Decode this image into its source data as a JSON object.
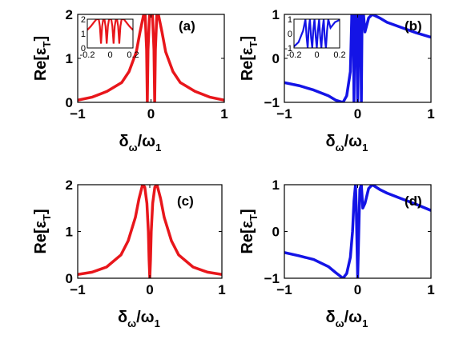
{
  "chart_data": [
    {
      "type": "line",
      "panel_label": "(a)",
      "xlim": [
        -1,
        1
      ],
      "ylim": [
        0,
        2
      ],
      "xticks": [
        "−1",
        "0",
        "1"
      ],
      "yticks": [
        "0",
        "1",
        "2"
      ],
      "ylabel": {
        "main": "Re[ε",
        "sub": "T",
        "close": "]"
      },
      "xlabel": {
        "main": "δ",
        "sub1": "ω",
        "mid": "/ω",
        "sub2": "1"
      },
      "series_color": "#e8161b",
      "x": [
        -1,
        -0.8,
        -0.6,
        -0.4,
        -0.3,
        -0.2,
        -0.15,
        -0.1,
        -0.08,
        -0.06,
        -0.05,
        -0.04,
        -0.02,
        0,
        0.02,
        0.04,
        0.05,
        0.06,
        0.08,
        0.1,
        0.15,
        0.2,
        0.3,
        0.4,
        0.6,
        0.8,
        1
      ],
      "y": [
        0.05,
        0.12,
        0.25,
        0.45,
        0.7,
        1.15,
        1.6,
        2.0,
        2.0,
        1.2,
        0.0,
        1.2,
        2.0,
        2.0,
        2.0,
        1.2,
        0.0,
        1.2,
        2.0,
        2.0,
        1.6,
        1.15,
        0.7,
        0.45,
        0.25,
        0.12,
        0.05
      ],
      "inset": {
        "xlim": [
          -0.2,
          0.2
        ],
        "ylim": [
          0,
          2
        ],
        "xticks": [
          "-0.2",
          "0",
          "0.2"
        ],
        "yticks": [
          "0",
          "1",
          "2"
        ],
        "x": [
          -0.2,
          -0.17,
          -0.14,
          -0.12,
          -0.1,
          -0.09,
          -0.08,
          -0.07,
          -0.06,
          -0.05,
          -0.04,
          -0.03,
          -0.02,
          -0.01,
          0,
          0.01,
          0.02,
          0.03,
          0.04,
          0.05,
          0.06,
          0.07,
          0.08,
          0.09,
          0.1,
          0.12,
          0.14,
          0.17,
          0.2
        ],
        "y": [
          1.25,
          1.5,
          1.8,
          2.0,
          2.0,
          1.5,
          0.3,
          1.5,
          2.0,
          2.0,
          1.5,
          0.3,
          1.5,
          2.0,
          2.0,
          2.0,
          1.5,
          0.3,
          1.5,
          2.0,
          2.0,
          1.5,
          0.3,
          1.5,
          2.0,
          2.0,
          1.8,
          1.5,
          1.25
        ]
      }
    },
    {
      "type": "line",
      "panel_label": "(b)",
      "xlim": [
        -1,
        1
      ],
      "ylim": [
        -1,
        1
      ],
      "xticks": [
        "−1",
        "0",
        "1"
      ],
      "yticks": [
        "−1",
        "0",
        "1"
      ],
      "ylabel": {
        "main": "Re[ε",
        "sub": "T",
        "close": "]"
      },
      "xlabel": {
        "main": "δ",
        "sub1": "ω",
        "mid": "/ω",
        "sub2": "1"
      },
      "series_color": "#1414e6",
      "x": [
        -1,
        -0.8,
        -0.6,
        -0.4,
        -0.3,
        -0.2,
        -0.15,
        -0.1,
        -0.08,
        -0.06,
        -0.05,
        -0.04,
        -0.02,
        0,
        0.02,
        0.04,
        0.05,
        0.06,
        0.08,
        0.1,
        0.15,
        0.2,
        0.3,
        0.4,
        0.6,
        0.8,
        1
      ],
      "y": [
        -0.55,
        -0.62,
        -0.72,
        -0.85,
        -0.95,
        -1.0,
        -0.85,
        -0.3,
        1.0,
        1.0,
        -1.0,
        1.0,
        1.0,
        -1.0,
        1.0,
        1.0,
        -1.0,
        1.0,
        1.0,
        0.6,
        0.92,
        1.0,
        0.92,
        0.82,
        0.7,
        0.58,
        0.48
      ],
      "inset": {
        "xlim": [
          -0.2,
          0.2
        ],
        "ylim": [
          -1,
          1
        ],
        "xticks": [
          "-0.2",
          "0",
          "0.2"
        ],
        "yticks": [
          "-1",
          "0",
          "1"
        ],
        "x": [
          -0.2,
          -0.16,
          -0.12,
          -0.1,
          -0.09,
          -0.08,
          -0.07,
          -0.06,
          -0.05,
          -0.04,
          -0.03,
          -0.02,
          -0.01,
          0,
          0.01,
          0.02,
          0.03,
          0.04,
          0.05,
          0.06,
          0.07,
          0.08,
          0.09,
          0.1,
          0.12,
          0.16,
          0.2
        ],
        "y": [
          -0.9,
          -0.6,
          0.2,
          1.0,
          -0.2,
          -1.0,
          0.4,
          1.0,
          -0.3,
          -1.0,
          0.3,
          1.0,
          -0.2,
          -1.0,
          0.2,
          1.0,
          -0.3,
          -1.0,
          0.3,
          1.0,
          -0.4,
          -1.0,
          0.2,
          1.0,
          0.4,
          0.8,
          0.95
        ]
      }
    },
    {
      "type": "line",
      "panel_label": "(c)",
      "xlim": [
        -1,
        1
      ],
      "ylim": [
        0,
        2
      ],
      "xticks": [
        "−1",
        "0",
        "1"
      ],
      "yticks": [
        "0",
        "1",
        "2"
      ],
      "ylabel": {
        "main": "Re[ε",
        "sub": "T",
        "close": "]"
      },
      "xlabel": {
        "main": "δ",
        "sub1": "ω",
        "mid": "/ω",
        "sub2": "1"
      },
      "series_color": "#e8161b",
      "x": [
        -1,
        -0.8,
        -0.6,
        -0.4,
        -0.3,
        -0.2,
        -0.15,
        -0.1,
        -0.07,
        -0.04,
        -0.02,
        -0.01,
        0,
        0.01,
        0.02,
        0.04,
        0.07,
        0.1,
        0.15,
        0.2,
        0.3,
        0.4,
        0.6,
        0.8,
        1
      ],
      "y": [
        0.08,
        0.13,
        0.24,
        0.5,
        0.8,
        1.3,
        1.7,
        2.0,
        1.95,
        1.6,
        1.0,
        0.4,
        0.0,
        0.4,
        1.0,
        1.6,
        1.95,
        2.0,
        1.7,
        1.3,
        0.8,
        0.5,
        0.24,
        0.13,
        0.08
      ]
    },
    {
      "type": "line",
      "panel_label": "(d)",
      "xlim": [
        -1,
        1
      ],
      "ylim": [
        -1,
        1
      ],
      "xticks": [
        "−1",
        "0",
        "1"
      ],
      "yticks": [
        "−1",
        "0",
        "1"
      ],
      "ylabel": {
        "main": "Re[ε",
        "sub": "T",
        "close": "]"
      },
      "xlabel": {
        "main": "δ",
        "sub1": "ω",
        "mid": "/ω",
        "sub2": "1"
      },
      "series_color": "#1414e6",
      "x": [
        -1,
        -0.8,
        -0.6,
        -0.4,
        -0.3,
        -0.2,
        -0.15,
        -0.1,
        -0.07,
        -0.05,
        -0.03,
        -0.02,
        0,
        0.02,
        0.03,
        0.05,
        0.07,
        0.1,
        0.15,
        0.2,
        0.3,
        0.4,
        0.6,
        0.8,
        1
      ],
      "y": [
        -0.45,
        -0.52,
        -0.6,
        -0.75,
        -0.88,
        -1.0,
        -0.9,
        -0.55,
        0.0,
        0.65,
        1.0,
        0.55,
        -1.0,
        0.3,
        0.9,
        1.0,
        0.5,
        0.6,
        0.92,
        1.0,
        0.9,
        0.82,
        0.7,
        0.58,
        0.45
      ]
    }
  ]
}
